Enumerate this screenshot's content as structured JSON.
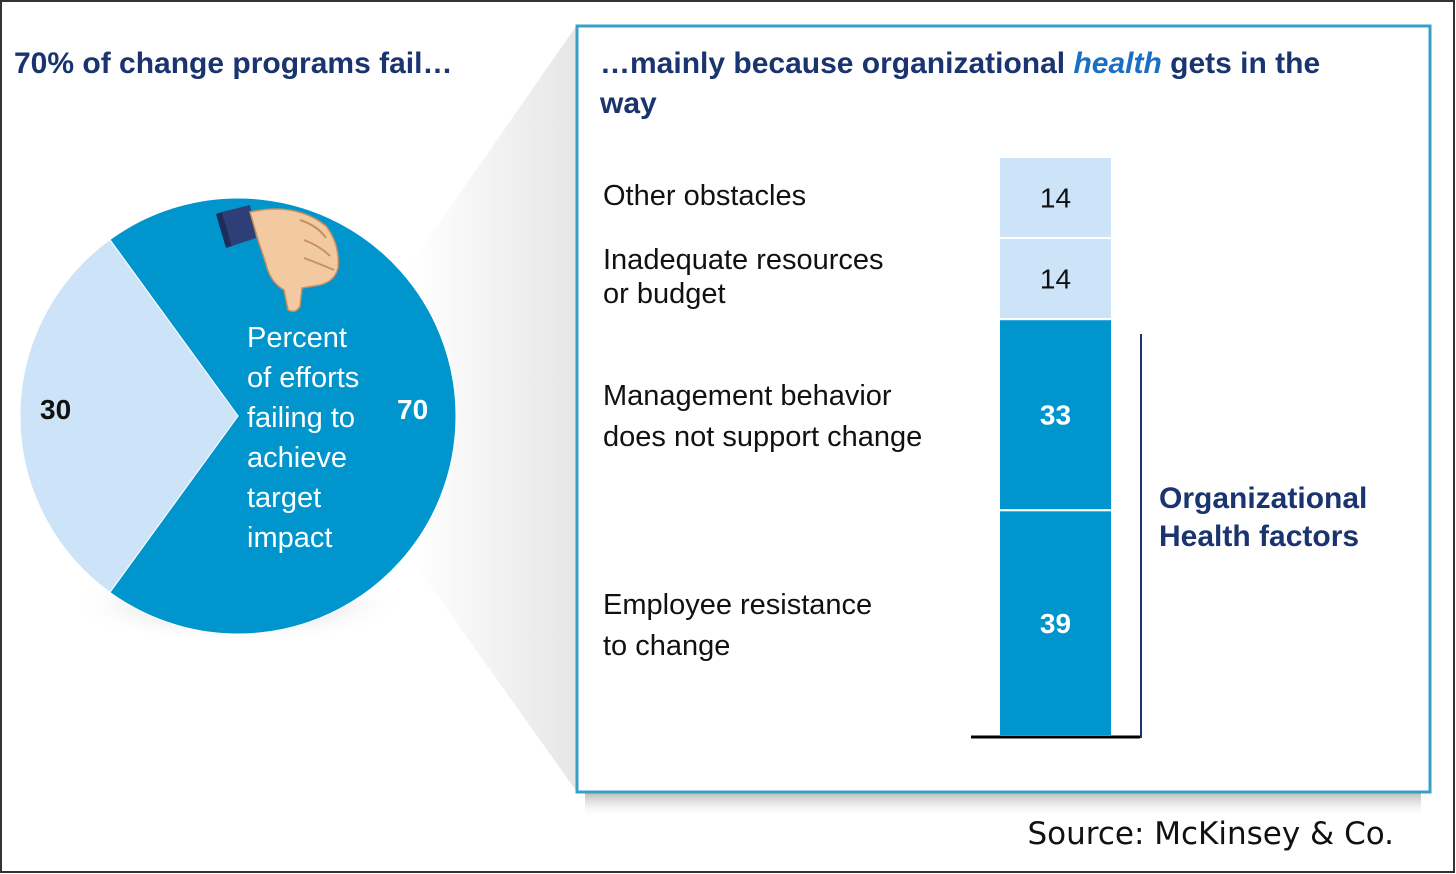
{
  "left_panel": {
    "heading": "70% of change programs fail…",
    "pie_center_label": [
      "Percent",
      "of efforts",
      "failing to",
      "achieve",
      "target",
      "impact"
    ]
  },
  "right_panel": {
    "heading_part1": "…mainly because organizational ",
    "heading_emphasis": "health",
    "heading_part2": " gets in the way",
    "bracket_label": [
      "Organizational",
      "Health factors"
    ]
  },
  "source": "Source: McKinsey & Co.",
  "colors": {
    "dark_blue": "#0095cc",
    "light_blue": "#cde3f8",
    "navy_text": "#1a3470",
    "frame_border": "#3a9fc8"
  },
  "chart_data": [
    {
      "type": "pie",
      "slices": [
        {
          "label": "",
          "value": 70,
          "color": "#0095cc",
          "value_label": "70"
        },
        {
          "label": "",
          "value": 30,
          "color": "#cde3f8",
          "value_label": "30"
        }
      ]
    },
    {
      "type": "bar",
      "stacked": true,
      "categories": [
        "Employee resistance to change",
        "Management behavior does not support change",
        "Inadequate resources or budget",
        "Other obstacles"
      ],
      "category_lines": [
        [
          "Employee resistance",
          "to change"
        ],
        [
          "Management behavior",
          "does not support change"
        ],
        [
          "Inadequate resources",
          "or budget"
        ],
        [
          "Other obstacles"
        ]
      ],
      "values": [
        39,
        33,
        14,
        14
      ],
      "value_labels": [
        "39",
        "33",
        "14",
        "14"
      ],
      "colors": [
        "#0095cc",
        "#0095cc",
        "#cde3f8",
        "#cde3f8"
      ],
      "total": 100
    }
  ]
}
